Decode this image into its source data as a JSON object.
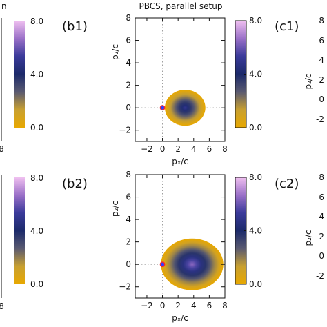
{
  "title": "PBCS, parallel setup",
  "colors": {
    "colormap": [
      "#e8a800",
      "#c8a030",
      "#5a5a70",
      "#1c2a6a",
      "#3a3a9a",
      "#9a70c8",
      "#f0c0f0"
    ],
    "zero_line": "#999999",
    "marker_ring": "#ff2a2a",
    "marker_fill": "#3040ff"
  },
  "chart_data": [
    {
      "type": "heatmap",
      "panel_label": "(b1)",
      "xlabel": "pₓ/c",
      "ylabel": "p₂/c",
      "xlim": [
        -3.5,
        8
      ],
      "ylim": [
        -3,
        8
      ],
      "xticks": [
        -2,
        0,
        2,
        4,
        6,
        8
      ],
      "yticks": [
        -2,
        0,
        2,
        4,
        6,
        8
      ],
      "zero_lines": true,
      "colorbar": {
        "range": [
          0,
          8
        ],
        "ticks": [
          "0.0",
          "4.0",
          "8.0"
        ]
      },
      "ellipse": {
        "center": [
          2.9,
          0
        ],
        "radius_x": 2.6,
        "radius_y": 1.6,
        "core_value": 5.0,
        "edge_value": 0.0
      },
      "marker": [
        0,
        0
      ]
    },
    {
      "type": "heatmap",
      "panel_label": "(b2)",
      "xlabel": "pₓ/c",
      "ylabel": "p₂/c",
      "xlim": [
        -3.5,
        8
      ],
      "ylim": [
        -3,
        8
      ],
      "xticks": [
        -2,
        0,
        2,
        4,
        6,
        8
      ],
      "yticks": [
        -2,
        0,
        2,
        4,
        6,
        8
      ],
      "zero_lines": true,
      "colorbar": {
        "range": [
          0,
          8
        ],
        "ticks": [
          "0.0",
          "4.0",
          "8.0"
        ]
      },
      "ellipse": {
        "center": [
          3.8,
          0
        ],
        "radius_x": 4.0,
        "radius_y": 2.3,
        "core_value": 6.5,
        "edge_value": 0.0
      },
      "marker": [
        0,
        0
      ]
    }
  ],
  "partial_left": {
    "title_fragment": "n",
    "xtick": "8",
    "colorbar_ticks": [
      "0.0",
      "4.0",
      "8.0"
    ]
  },
  "partial_right": {
    "panel_labels": [
      "(c1)",
      "(c2)"
    ],
    "ylabel": "p₂/c",
    "yticks": [
      "-2",
      "0",
      "2",
      "4",
      "6",
      "8"
    ]
  }
}
